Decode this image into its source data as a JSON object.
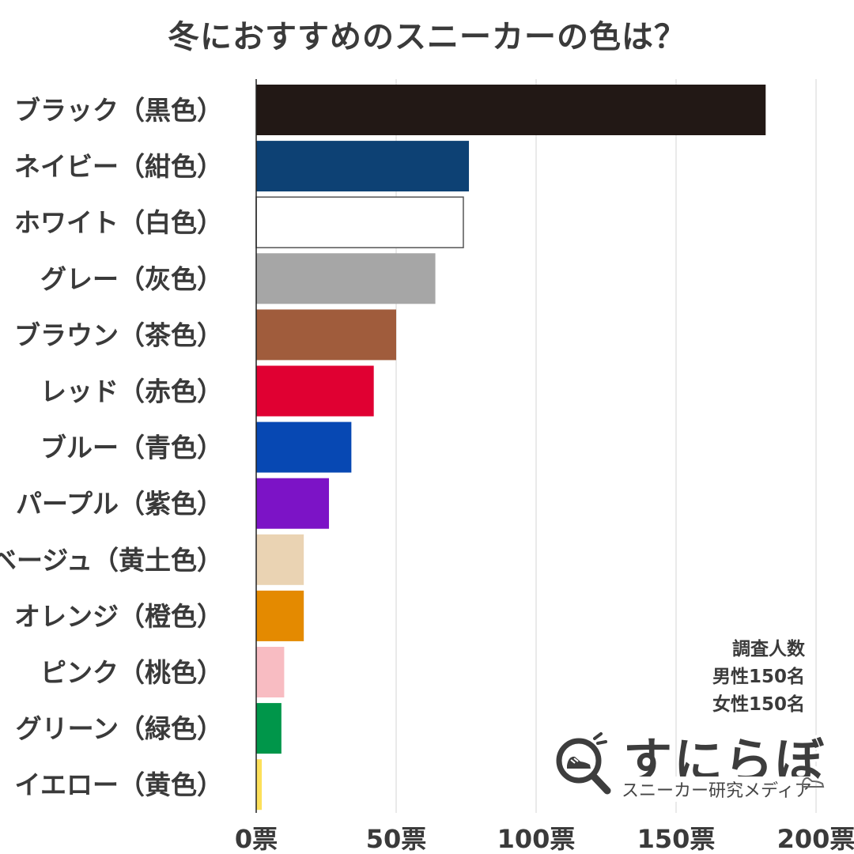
{
  "chart_data": {
    "type": "bar",
    "orientation": "horizontal",
    "title": "冬におすすめのスニーカーの色は？",
    "categories": [
      "ブラック（黒色）",
      "ネイビー（紺色）",
      "ホワイト（白色）",
      "グレー（灰色）",
      "ブラウン（茶色）",
      "レッド（赤色）",
      "ブルー（青色）",
      "パープル（紫色）",
      "ベージュ（黄土色）",
      "オレンジ（橙色）",
      "ピンク（桃色）",
      "グリーン（緑色）",
      "イエロー（黄色）"
    ],
    "values": [
      182,
      76,
      74,
      64,
      50,
      42,
      34,
      26,
      17,
      17,
      10,
      9,
      2
    ],
    "colors": [
      "#221815",
      "#0d4174",
      "#ffffff",
      "#a6a6a6",
      "#a05c3c",
      "#e00032",
      "#0748b3",
      "#7c13c6",
      "#ead3b3",
      "#e48a00",
      "#f8bcc2",
      "#00964a",
      "#fde05a"
    ],
    "bar_outline": "#555555",
    "xlim": [
      0,
      200
    ],
    "xticks": [
      0,
      50,
      100,
      150,
      200
    ],
    "xtick_labels": [
      "0票",
      "50票",
      "100票",
      "150票",
      "200票"
    ],
    "grid": true,
    "xlabel": "",
    "ylabel": ""
  },
  "survey": {
    "title": "調査人数",
    "male": "男性150名",
    "female": "女性150名"
  },
  "logo": {
    "name": "すにらぼ",
    "subtitle": "スニーカー研究メディア",
    "icon": "magnifier-sneaker-icon"
  }
}
